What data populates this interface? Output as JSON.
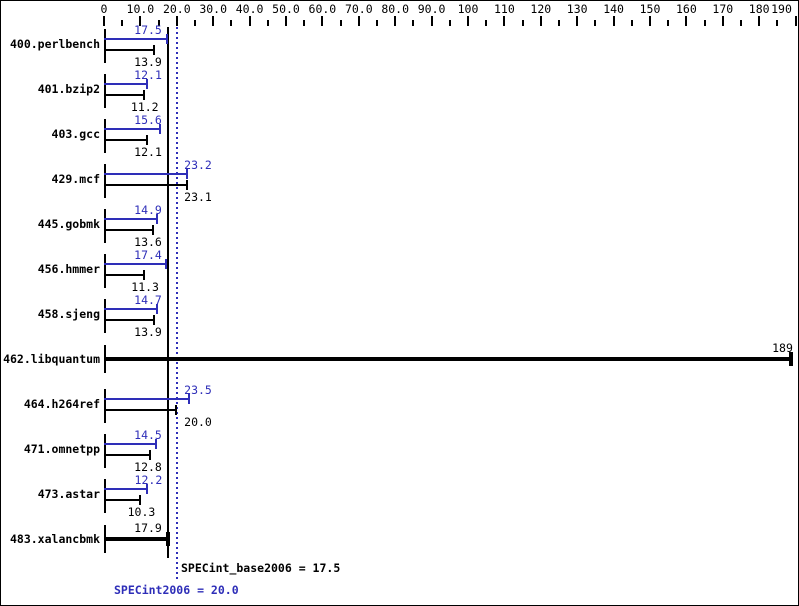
{
  "chart_data": {
    "type": "bar",
    "orientation": "horizontal",
    "title": "",
    "xlabel": "",
    "ylabel": "",
    "xlim": [
      0,
      195
    ],
    "grid": false,
    "x_major_ticks": [
      0,
      10,
      20,
      30,
      40,
      50,
      60,
      70,
      80,
      90,
      100,
      110,
      120,
      130,
      140,
      150,
      160,
      170,
      180,
      190
    ],
    "x_tick_labels": [
      "0",
      "10.0",
      "20.0",
      "30.0",
      "40.0",
      "50.0",
      "60.0",
      "70.0",
      "80.0",
      "90.0",
      "100",
      "110",
      "120",
      "130",
      "140",
      "150",
      "160",
      "170",
      "180",
      "190"
    ],
    "x_minor_ticks": [
      5,
      15,
      25,
      35,
      45,
      55,
      65,
      75,
      85,
      95,
      105,
      115,
      125,
      135,
      145,
      155,
      165,
      175,
      185
    ],
    "series_names": {
      "peak": "SPECint2006",
      "base": "SPECint_base2006"
    },
    "rows": [
      {
        "name": "400.perlbench",
        "peak": "17.5",
        "base": "13.9"
      },
      {
        "name": "401.bzip2",
        "peak": "12.1",
        "base": "11.2"
      },
      {
        "name": "403.gcc",
        "peak": "15.6",
        "base": "12.1"
      },
      {
        "name": "429.mcf",
        "peak": "23.2",
        "base": "23.1"
      },
      {
        "name": "445.gobmk",
        "peak": "14.9",
        "base": "13.6"
      },
      {
        "name": "456.hmmer",
        "peak": "17.4",
        "base": "11.3"
      },
      {
        "name": "458.sjeng",
        "peak": "14.7",
        "base": "13.9"
      },
      {
        "name": "462.libquantum",
        "merged": "189"
      },
      {
        "name": "464.h264ref",
        "peak": "23.5",
        "base": "20.0"
      },
      {
        "name": "471.omnetpp",
        "peak": "14.5",
        "base": "12.8"
      },
      {
        "name": "473.astar",
        "peak": "12.2",
        "base": "10.3"
      },
      {
        "name": "483.xalancbmk",
        "merged": "17.9"
      }
    ],
    "reference_lines": [
      {
        "label": "SPECint_base2006 = 17.5",
        "value": 17.5,
        "style": "solid",
        "color": "#000000"
      },
      {
        "label": "SPECint2006 = 20.0",
        "value": 20.0,
        "style": "dotted",
        "color": "#2e2eb8"
      }
    ],
    "legend_position": "bottom"
  },
  "colors": {
    "peak": "#2e2eb8",
    "base": "#000000",
    "background": "#ffffff",
    "border": "#000000"
  }
}
